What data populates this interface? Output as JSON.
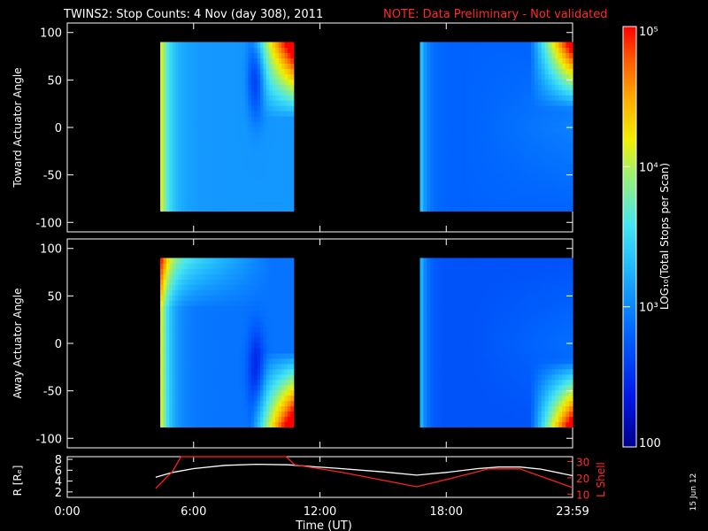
{
  "title": "TWINS2: Stop Counts:  4 Nov (day 308), 2011",
  "note": "NOTE: Data Preliminary - Not validated",
  "stamp": "15 Jun 12",
  "colorbar": {
    "label": "LOG₁₀(Total Stops per Scan)",
    "ticks": [
      "10⁵",
      "10⁴",
      "10³",
      "100"
    ],
    "log_range": [
      2,
      5
    ]
  },
  "chart_data": [
    {
      "type": "heatmap",
      "panel": "toward",
      "ylabel": "Toward Actuator Angle",
      "ylim": [
        -110,
        110
      ],
      "yticks": [
        "100",
        "50",
        "0",
        "-50",
        "-100"
      ],
      "xlim_hours": [
        0,
        24
      ],
      "angle_range": [
        -88,
        90
      ],
      "segments": [
        {
          "start": "04:25",
          "end": "10:45"
        },
        {
          "start": "16:45",
          "end": "24:00"
        }
      ],
      "log_counts_estimate": {
        "seg1_start_band": 4.3,
        "seg1_background": 3.1,
        "seg1_min_near_09h": 2.5,
        "seg1_max_corner": 4.6,
        "seg2_background": 2.8,
        "seg2_corner_max": 4.5
      }
    },
    {
      "type": "heatmap",
      "panel": "away",
      "ylabel": "Away Actuator Angle",
      "ylim": [
        -110,
        110
      ],
      "yticks": [
        "100",
        "50",
        "0",
        "-50",
        "-100"
      ],
      "xlim_hours": [
        0,
        24
      ],
      "angle_range": [
        -88,
        90
      ],
      "segments": [
        {
          "start": "04:25",
          "end": "10:45"
        },
        {
          "start": "16:45",
          "end": "24:00"
        }
      ],
      "log_counts_estimate": {
        "seg1_start_band": 4.3,
        "seg1_background": 2.9,
        "seg1_min_near_09h": 2.4,
        "seg1_max_top": 4.6,
        "seg2_background": 2.7,
        "seg2_corner_max": 4.5
      }
    },
    {
      "type": "line",
      "panel": "orbit",
      "ylabel_left": "R [Rₑ]",
      "ylabel_right": "L Shell",
      "xlabel": "Time (UT)",
      "xticks": [
        "0:00",
        "6:00",
        "12:00",
        "18:00",
        "23:59"
      ],
      "yticks_left": [
        "8",
        "6",
        "4",
        "2"
      ],
      "yticks_right": [
        "30",
        "20",
        "10"
      ],
      "ylim_left": [
        1,
        8.5
      ],
      "ylim_right": [
        8,
        33
      ],
      "series": [
        {
          "name": "R",
          "axis": "left",
          "x_hours": [
            4.2,
            5.0,
            6.0,
            7.5,
            9.0,
            10.5,
            11.5,
            13.0,
            15.0,
            16.6,
            18.0,
            19.5,
            20.5,
            21.5,
            22.5,
            24.0
          ],
          "y": [
            4.7,
            5.6,
            6.3,
            6.9,
            7.1,
            7.0,
            6.7,
            6.3,
            5.7,
            5.1,
            5.6,
            6.3,
            6.6,
            6.6,
            6.2,
            5.0
          ]
        },
        {
          "name": "L Shell",
          "axis": "right",
          "x_hours": [
            4.2,
            5.0,
            5.4,
            10.4,
            10.8,
            13.0,
            16.6,
            18.5,
            20.0,
            21.5,
            24.0
          ],
          "y": [
            13.5,
            24.0,
            33.0,
            33.0,
            28.0,
            23.5,
            14.5,
            20.5,
            25.5,
            25.5,
            14.0
          ]
        }
      ]
    }
  ]
}
